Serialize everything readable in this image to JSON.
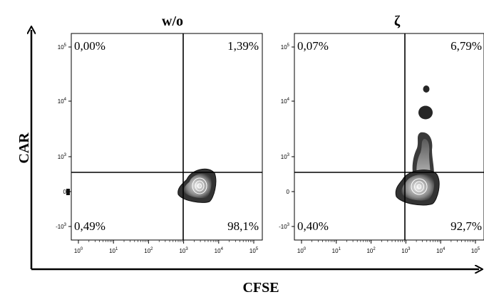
{
  "figure": {
    "x_axis_label": "CFSE",
    "y_axis_label": "CAR"
  },
  "chart_data": [
    {
      "type": "scatter",
      "subtype": "flow-cytometry density contour plot",
      "title": "w/o",
      "xlabel": "CFSE",
      "ylabel": "CAR",
      "x_scale": "biexponential (log)",
      "y_scale": "biexponential (log)",
      "x_ticks": [
        "10^0",
        "10^1",
        "10^2",
        "10^3",
        "10^4",
        "10^5"
      ],
      "y_ticks": [
        "-10^3",
        "0",
        "10^3",
        "10^4",
        "10^5"
      ],
      "quadrants": {
        "upper_left": "0,00%",
        "upper_right": "1,39%",
        "lower_left": "0,49%",
        "lower_right": "98,1%"
      },
      "population_centers": [
        {
          "x": 5000,
          "y": 0
        }
      ]
    },
    {
      "type": "scatter",
      "subtype": "flow-cytometry density contour plot",
      "title": "ζ",
      "xlabel": "CFSE",
      "ylabel": "CAR",
      "x_scale": "biexponential (log)",
      "y_scale": "biexponential (log)",
      "x_ticks": [
        "10^0",
        "10^1",
        "10^2",
        "10^3",
        "10^4",
        "10^5"
      ],
      "y_ticks": [
        "-10^3",
        "0",
        "10^3",
        "10^4",
        "10^5"
      ],
      "quadrants": {
        "upper_left": "0,07%",
        "upper_right": "6,79%",
        "lower_left": "0,40%",
        "lower_right": "92,7%"
      },
      "population_centers": [
        {
          "x": 4500,
          "y": 0
        },
        {
          "x": 5000,
          "y": 15000
        },
        {
          "x": 6000,
          "y": 45000
        }
      ]
    }
  ]
}
